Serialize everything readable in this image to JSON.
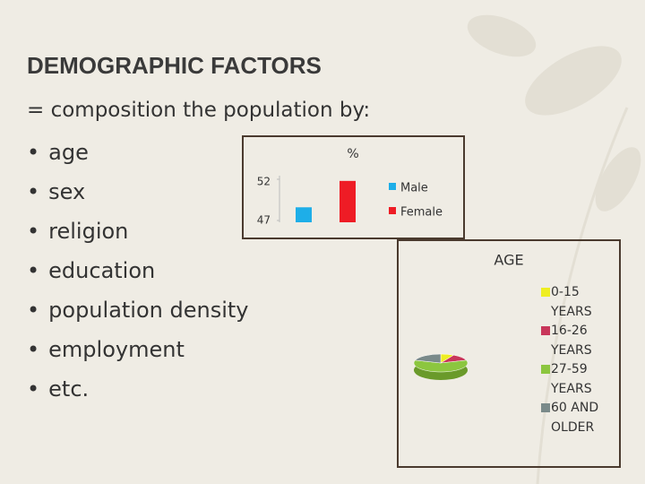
{
  "slide": {
    "title": "DEMOGRAPHIC FACTORS",
    "intro": "= composition the population by:",
    "bullets": [
      "age",
      "sex",
      "religion",
      "education",
      "population density",
      "employment",
      "etc."
    ]
  },
  "chart_data": [
    {
      "type": "bar",
      "title": "%",
      "categories": [
        null
      ],
      "ylim": [
        47,
        52
      ],
      "yticks": [
        47,
        52
      ],
      "series": [
        {
          "name": "Male",
          "color": "#1eaee8",
          "values": [
            48.6
          ]
        },
        {
          "name": "Female",
          "color": "#ee1c25",
          "values": [
            51.8
          ]
        }
      ]
    },
    {
      "type": "pie",
      "title": "AGE",
      "categories": [
        "0-15 YEARS",
        "16-26 YEARS",
        "27-59 YEARS",
        "60 AND OLDER"
      ],
      "values": [
        8,
        12,
        60,
        20
      ],
      "colors": [
        "#eeee22",
        "#c8365a",
        "#8cc63f",
        "#7a8a8a"
      ]
    }
  ]
}
